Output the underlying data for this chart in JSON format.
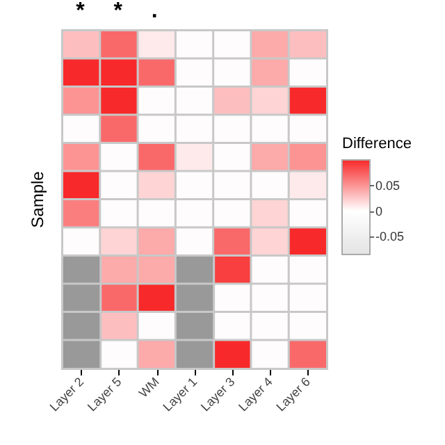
{
  "chart_data": {
    "type": "heatmap",
    "ylabel": "Sample",
    "clabel": "Difference",
    "categories": [
      "Layer 2",
      "Layer 5",
      "WM",
      "Layer 1",
      "Layer 3",
      "Layer 4",
      "Layer 6"
    ],
    "y_categories": [
      null,
      null,
      null,
      null,
      null,
      null,
      null,
      null,
      null,
      null,
      null,
      null
    ],
    "cells": [
      [
        0.03,
        0.07,
        0.01,
        0,
        0,
        0.04,
        0.03
      ],
      [
        0.1,
        0.1,
        0.07,
        0,
        0,
        0.04,
        0
      ],
      [
        0.05,
        0.1,
        0,
        0,
        0.03,
        0.02,
        0.1
      ],
      [
        0,
        0.07,
        0,
        0,
        0,
        0,
        0
      ],
      [
        0.05,
        0,
        0.07,
        0.01,
        0,
        0.04,
        0.05
      ],
      [
        0.1,
        0,
        0.02,
        0,
        0,
        0,
        0.01
      ],
      [
        0.06,
        0,
        0,
        0,
        0,
        0.02,
        0
      ],
      [
        0,
        0.02,
        0.04,
        0,
        0.07,
        0.02,
        0.1
      ],
      [
        null,
        0.04,
        0.04,
        null,
        0.09,
        0,
        0
      ],
      [
        null,
        0.07,
        0.1,
        null,
        0,
        0,
        0
      ],
      [
        null,
        0.03,
        0,
        null,
        0,
        0,
        0
      ],
      [
        null,
        0,
        0.04,
        null,
        0.1,
        0,
        0.07
      ]
    ],
    "clim": [
      -0.085,
      0.1
    ],
    "cticks": [
      -0.05,
      0,
      0.05
    ],
    "annotations": [
      "*",
      "*",
      "."
    ]
  }
}
